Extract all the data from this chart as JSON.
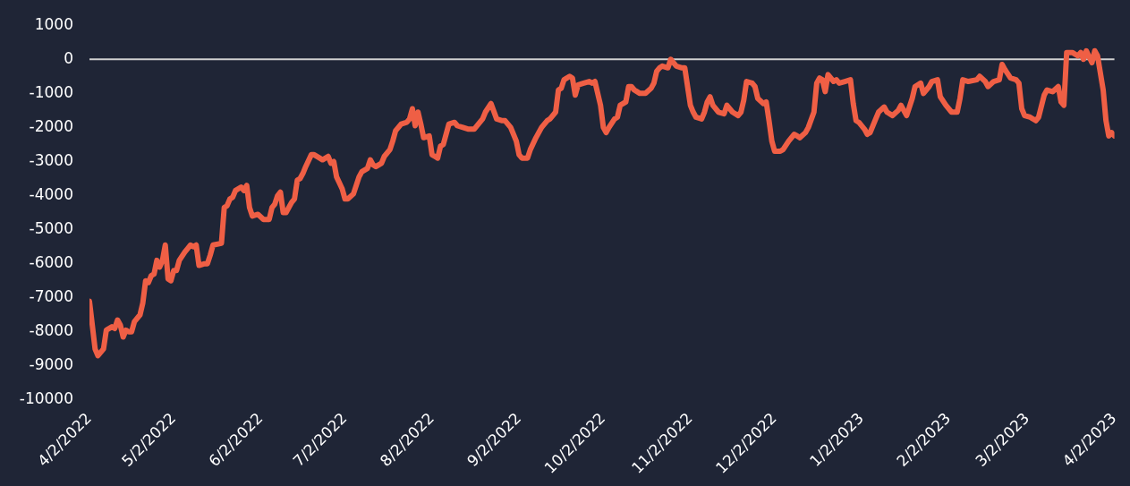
{
  "chart_data": {
    "type": "line",
    "x": [
      "2022-04-02",
      "2022-04-03",
      "2022-04-04",
      "2022-04-05",
      "2022-04-07",
      "2022-04-08",
      "2022-04-10",
      "2022-04-11",
      "2022-04-12",
      "2022-04-13",
      "2022-04-14",
      "2022-04-15",
      "2022-04-16",
      "2022-04-17",
      "2022-04-18",
      "2022-04-20",
      "2022-04-21",
      "2022-04-22",
      "2022-04-23",
      "2022-04-24",
      "2022-04-25",
      "2022-04-26",
      "2022-04-27",
      "2022-04-28",
      "2022-04-29",
      "2022-04-30",
      "2022-05-01",
      "2022-05-02",
      "2022-05-03",
      "2022-05-04",
      "2022-05-06",
      "2022-05-07",
      "2022-05-08",
      "2022-05-09",
      "2022-05-10",
      "2022-05-11",
      "2022-05-13",
      "2022-05-14",
      "2022-05-15",
      "2022-05-16",
      "2022-05-19",
      "2022-05-20",
      "2022-05-21",
      "2022-05-22",
      "2022-05-23",
      "2022-05-24",
      "2022-05-26",
      "2022-05-27",
      "2022-05-28",
      "2022-05-29",
      "2022-05-30",
      "2022-06-01",
      "2022-06-03",
      "2022-06-05",
      "2022-06-06",
      "2022-06-07",
      "2022-06-08",
      "2022-06-09",
      "2022-06-10",
      "2022-06-11",
      "2022-06-13",
      "2022-06-14",
      "2022-06-15",
      "2022-06-16",
      "2022-06-17",
      "2022-06-18",
      "2022-06-20",
      "2022-06-21",
      "2022-06-23",
      "2022-06-24",
      "2022-06-26",
      "2022-06-27",
      "2022-06-28",
      "2022-06-29",
      "2022-07-01",
      "2022-07-02",
      "2022-07-03",
      "2022-07-05",
      "2022-07-06",
      "2022-07-07",
      "2022-07-08",
      "2022-07-10",
      "2022-07-11",
      "2022-07-12",
      "2022-07-13",
      "2022-07-15",
      "2022-07-16",
      "2022-07-18",
      "2022-07-19",
      "2022-07-20",
      "2022-07-22",
      "2022-07-24",
      "2022-07-25",
      "2022-07-26",
      "2022-07-27",
      "2022-07-28",
      "2022-07-29",
      "2022-07-30",
      "2022-08-01",
      "2022-08-02",
      "2022-08-03",
      "2022-08-04",
      "2022-08-05",
      "2022-08-06",
      "2022-08-08",
      "2022-08-10",
      "2022-08-11",
      "2022-08-13",
      "2022-08-15",
      "2022-08-17",
      "2022-08-20",
      "2022-08-21",
      "2022-08-23",
      "2022-08-25",
      "2022-08-27",
      "2022-08-28",
      "2022-08-30",
      "2022-09-01",
      "2022-09-02",
      "2022-09-03",
      "2022-09-05",
      "2022-09-06",
      "2022-09-08",
      "2022-09-10",
      "2022-09-12",
      "2022-09-13",
      "2022-09-15",
      "2022-09-16",
      "2022-09-17",
      "2022-09-18",
      "2022-09-20",
      "2022-09-21",
      "2022-09-22",
      "2022-09-23",
      "2022-09-25",
      "2022-09-27",
      "2022-09-28",
      "2022-09-29",
      "2022-10-01",
      "2022-10-02",
      "2022-10-03",
      "2022-10-04",
      "2022-10-06",
      "2022-10-07",
      "2022-10-08",
      "2022-10-10",
      "2022-10-11",
      "2022-10-12",
      "2022-10-13",
      "2022-10-14",
      "2022-10-15",
      "2022-10-17",
      "2022-10-19",
      "2022-10-20",
      "2022-10-21",
      "2022-10-22",
      "2022-10-23",
      "2022-10-25",
      "2022-10-26",
      "2022-10-27",
      "2022-10-28",
      "2022-10-30",
      "2022-10-31",
      "2022-11-01",
      "2022-11-02",
      "2022-11-03",
      "2022-11-04",
      "2022-11-06",
      "2022-11-07",
      "2022-11-08",
      "2022-11-09",
      "2022-11-10",
      "2022-11-12",
      "2022-11-14",
      "2022-11-15",
      "2022-11-17",
      "2022-11-19",
      "2022-11-20",
      "2022-11-21",
      "2022-11-22",
      "2022-11-24",
      "2022-11-25",
      "2022-11-26",
      "2022-11-28",
      "2022-11-29",
      "2022-11-30",
      "2022-12-01",
      "2022-12-02",
      "2022-12-04",
      "2022-12-05",
      "2022-12-07",
      "2022-12-09",
      "2022-12-10",
      "2022-12-11",
      "2022-12-13",
      "2022-12-14",
      "2022-12-16",
      "2022-12-17",
      "2022-12-18",
      "2022-12-19",
      "2022-12-20",
      "2022-12-21",
      "2022-12-23",
      "2022-12-24",
      "2022-12-25",
      "2022-12-27",
      "2022-12-29",
      "2022-12-30",
      "2022-12-31",
      "2023-01-01",
      "2023-01-03",
      "2023-01-04",
      "2023-01-05",
      "2023-01-07",
      "2023-01-08",
      "2023-01-10",
      "2023-01-11",
      "2023-01-13",
      "2023-01-15",
      "2023-01-16",
      "2023-01-18",
      "2023-01-20",
      "2023-01-21",
      "2023-01-23",
      "2023-01-24",
      "2023-01-26",
      "2023-01-27",
      "2023-01-29",
      "2023-01-30",
      "2023-02-01",
      "2023-02-03",
      "2023-02-05",
      "2023-02-06",
      "2023-02-07",
      "2023-02-09",
      "2023-02-12",
      "2023-02-13",
      "2023-02-15",
      "2023-02-16",
      "2023-02-18",
      "2023-02-20",
      "2023-02-21",
      "2023-02-22",
      "2023-02-24",
      "2023-02-26",
      "2023-02-27",
      "2023-02-28",
      "2023-03-01",
      "2023-03-03",
      "2023-03-05",
      "2023-03-06",
      "2023-03-08",
      "2023-03-09",
      "2023-03-11",
      "2023-03-13",
      "2023-03-14",
      "2023-03-15",
      "2023-03-16",
      "2023-03-18",
      "2023-03-20",
      "2023-03-21",
      "2023-03-22",
      "2023-03-23",
      "2023-03-25",
      "2023-03-26",
      "2023-03-27",
      "2023-03-29",
      "2023-03-30",
      "2023-03-31",
      "2023-04-01",
      "2023-04-02"
    ],
    "series": [
      {
        "color": "#ef5f45",
        "values": [
          -7100,
          -7800,
          -8500,
          -8700,
          -8500,
          -7950,
          -7850,
          -7900,
          -7650,
          -7800,
          -8150,
          -7950,
          -8000,
          -8000,
          -7700,
          -7500,
          -7150,
          -6500,
          -6550,
          -6350,
          -6300,
          -5900,
          -6100,
          -5900,
          -5450,
          -6450,
          -6500,
          -6200,
          -6200,
          -5900,
          -5650,
          -5550,
          -5450,
          -5500,
          -5450,
          -6050,
          -6000,
          -6000,
          -5750,
          -5450,
          -5400,
          -4350,
          -4300,
          -4100,
          -4050,
          -3850,
          -3750,
          -3850,
          -3700,
          -4350,
          -4600,
          -4550,
          -4700,
          -4700,
          -4350,
          -4250,
          -4000,
          -3900,
          -4500,
          -4500,
          -4200,
          -4100,
          -3550,
          -3500,
          -3350,
          -3150,
          -2800,
          -2800,
          -2900,
          -2950,
          -2850,
          -3050,
          -3000,
          -3450,
          -3800,
          -4100,
          -4100,
          -3950,
          -3700,
          -3450,
          -3300,
          -3200,
          -2950,
          -3100,
          -3150,
          -3050,
          -2850,
          -2650,
          -2400,
          -2100,
          -1900,
          -1850,
          -1750,
          -1450,
          -1950,
          -1550,
          -1900,
          -2300,
          -2250,
          -2800,
          -2850,
          -2900,
          -2550,
          -2500,
          -1900,
          -1850,
          -1950,
          -2000,
          -2050,
          -2050,
          -1750,
          -1550,
          -1300,
          -1750,
          -1800,
          -1800,
          -2000,
          -2400,
          -2800,
          -2900,
          -2900,
          -2650,
          -2300,
          -2000,
          -1800,
          -1750,
          -1550,
          -900,
          -850,
          -600,
          -500,
          -550,
          -1050,
          -750,
          -700,
          -650,
          -700,
          -650,
          -1350,
          -2000,
          -2150,
          -2000,
          -1750,
          -1700,
          -1350,
          -1250,
          -800,
          -800,
          -900,
          -950,
          -1000,
          -1000,
          -850,
          -700,
          -350,
          -250,
          -200,
          -250,
          0,
          -100,
          -200,
          -250,
          -250,
          -800,
          -1350,
          -1550,
          -1700,
          -1750,
          -1550,
          -1250,
          -1100,
          -1350,
          -1550,
          -1600,
          -1350,
          -1550,
          -1650,
          -1550,
          -1200,
          -650,
          -700,
          -800,
          -1150,
          -1300,
          -1250,
          -1800,
          -2400,
          -2700,
          -2700,
          -2650,
          -2400,
          -2200,
          -2250,
          -2300,
          -2150,
          -2000,
          -1550,
          -700,
          -550,
          -600,
          -950,
          -450,
          -650,
          -600,
          -700,
          -650,
          -600,
          -1300,
          -1800,
          -1850,
          -2050,
          -2200,
          -2150,
          -1750,
          -1550,
          -1400,
          -1550,
          -1650,
          -1500,
          -1350,
          -1650,
          -1150,
          -800,
          -700,
          -1000,
          -800,
          -650,
          -600,
          -1100,
          -1350,
          -1550,
          -1550,
          -1150,
          -600,
          -650,
          -600,
          -500,
          -650,
          -800,
          -650,
          -600,
          -150,
          -300,
          -550,
          -600,
          -700,
          -1450,
          -1650,
          -1700,
          -1800,
          -1700,
          -1050,
          -900,
          -950,
          -800,
          -1250,
          -1350,
          200,
          200,
          100,
          200,
          0,
          250,
          -100,
          250,
          100,
          -900,
          -1800,
          -2250,
          -2150,
          -2250
        ]
      }
    ],
    "xlim": [
      "2022-04-02",
      "2023-04-02"
    ],
    "xticks": [
      {
        "value": "2022-04-02",
        "label": "4/2/2022"
      },
      {
        "value": "2022-05-02",
        "label": "5/2/2022"
      },
      {
        "value": "2022-06-02",
        "label": "6/2/2022"
      },
      {
        "value": "2022-07-02",
        "label": "7/2/2022"
      },
      {
        "value": "2022-08-02",
        "label": "8/2/2022"
      },
      {
        "value": "2022-09-02",
        "label": "9/2/2022"
      },
      {
        "value": "2022-10-02",
        "label": "10/2/2022"
      },
      {
        "value": "2022-11-02",
        "label": "11/2/2022"
      },
      {
        "value": "2022-12-02",
        "label": "12/2/2022"
      },
      {
        "value": "2023-01-02",
        "label": "1/2/2023"
      },
      {
        "value": "2023-02-02",
        "label": "2/2/2023"
      },
      {
        "value": "2023-03-02",
        "label": "3/2/2023"
      },
      {
        "value": "2023-04-02",
        "label": "4/2/2023"
      }
    ],
    "ylim": [
      -10000,
      1000
    ],
    "yticks": [
      1000,
      0,
      -1000,
      -2000,
      -3000,
      -4000,
      -5000,
      -6000,
      -7000,
      -8000,
      -9000,
      -10000
    ],
    "ref_lines": [
      {
        "axis": "y",
        "value": 0,
        "color": "#d0d0d0"
      }
    ],
    "marker": "none",
    "line_style": "solid",
    "legend": false,
    "grid": false
  }
}
